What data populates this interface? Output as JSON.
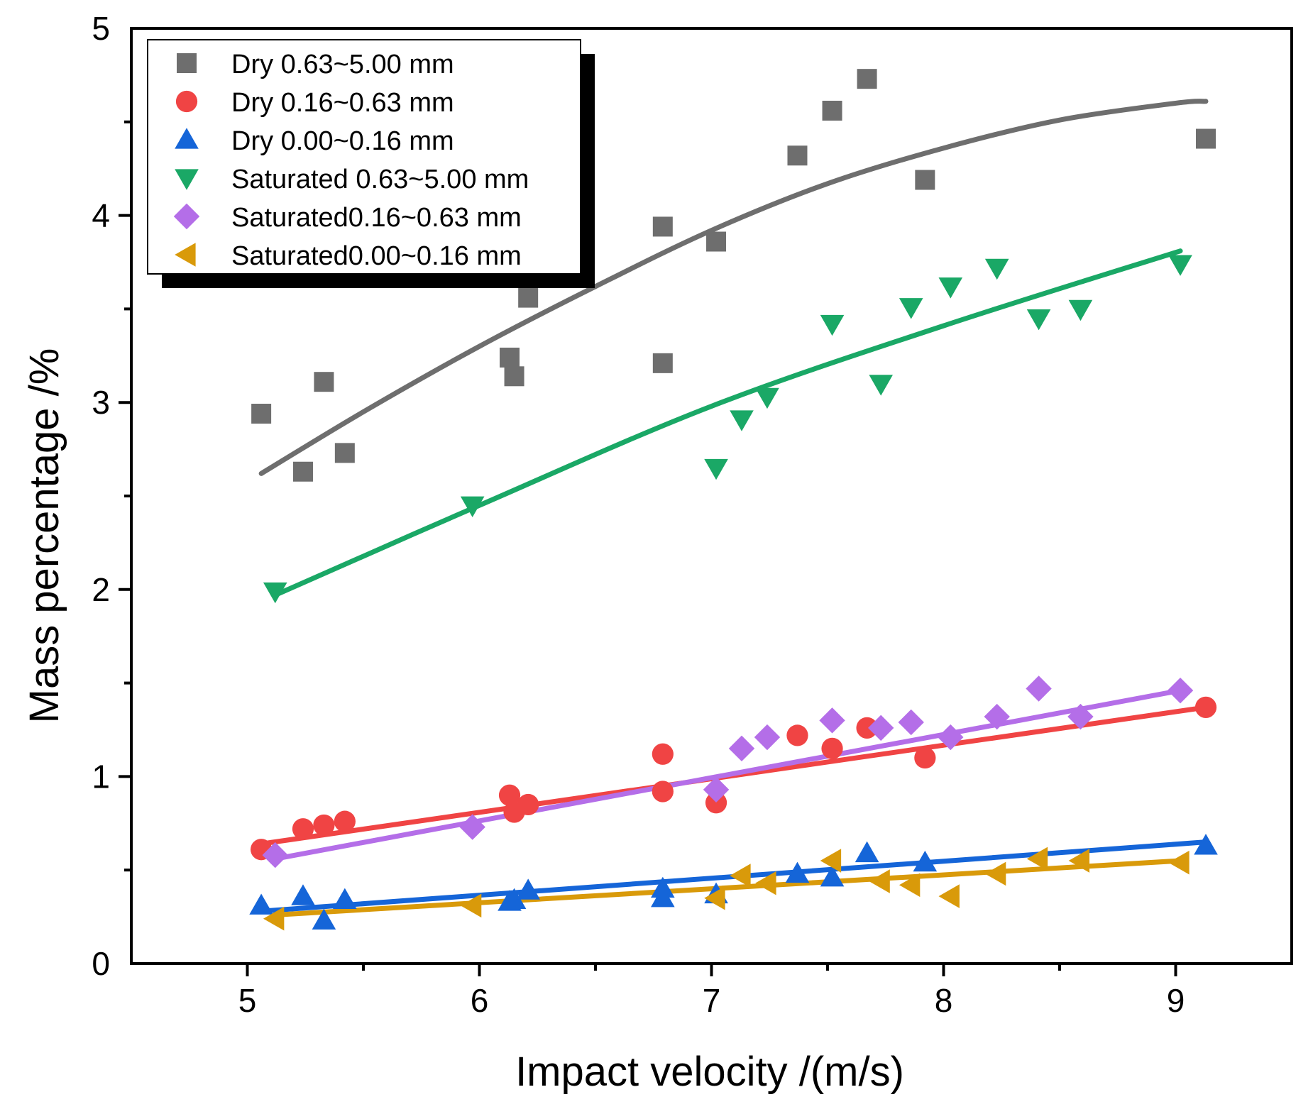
{
  "chart_data": {
    "type": "scatter",
    "title": "",
    "xlabel": "Impact velocity /(m/s)",
    "ylabel": "Mass percentage /%",
    "xlim": [
      4.5,
      9.5
    ],
    "ylim": [
      0,
      5
    ],
    "xticks": [
      5,
      6,
      7,
      8,
      9
    ],
    "yticks": [
      0,
      1,
      2,
      3,
      4,
      5
    ],
    "xtick_labels": [
      "5",
      "6",
      "7",
      "8",
      "9"
    ],
    "ytick_labels": [
      "0",
      "1",
      "2",
      "3",
      "4",
      "5"
    ],
    "grid": false,
    "legend_position": "top-left",
    "series": [
      {
        "name": "Dry 0.63~5.00 mm",
        "marker": "square",
        "color": "#6e6e6e",
        "x": [
          5.06,
          5.24,
          5.33,
          5.42,
          6.13,
          6.15,
          6.21,
          6.79,
          6.79,
          7.02,
          7.37,
          7.52,
          7.67,
          7.92,
          9.13
        ],
        "y": [
          2.94,
          2.63,
          3.11,
          2.73,
          3.24,
          3.14,
          3.56,
          3.94,
          3.21,
          3.86,
          4.32,
          4.56,
          4.73,
          4.19,
          4.41
        ],
        "fit": {
          "x": [
            5.06,
            5.5,
            6.0,
            6.5,
            7.0,
            7.5,
            8.0,
            8.5,
            9.0,
            9.13
          ],
          "y": [
            2.62,
            2.95,
            3.3,
            3.62,
            3.92,
            4.17,
            4.36,
            4.51,
            4.6,
            4.61
          ]
        }
      },
      {
        "name": "Dry 0.16~0.63 mm",
        "marker": "circle",
        "color": "#f04444",
        "x": [
          5.06,
          5.24,
          5.33,
          5.42,
          6.13,
          6.15,
          6.21,
          6.79,
          6.79,
          7.02,
          7.37,
          7.52,
          7.67,
          7.92,
          9.13
        ],
        "y": [
          0.61,
          0.72,
          0.74,
          0.76,
          0.9,
          0.81,
          0.85,
          1.12,
          0.92,
          0.86,
          1.22,
          1.15,
          1.26,
          1.1,
          1.37
        ],
        "fit": {
          "x": [
            5.06,
            9.13
          ],
          "y": [
            0.64,
            1.37
          ]
        }
      },
      {
        "name": "Dry 0.00~0.16 mm",
        "marker": "triangle-up",
        "color": "#1565d8",
        "x": [
          5.06,
          5.24,
          5.33,
          5.42,
          6.13,
          6.15,
          6.21,
          6.79,
          6.79,
          7.02,
          7.37,
          7.52,
          7.67,
          7.92,
          9.13
        ],
        "y": [
          0.31,
          0.36,
          0.23,
          0.34,
          0.33,
          0.34,
          0.39,
          0.4,
          0.35,
          0.37,
          0.48,
          0.46,
          0.59,
          0.54,
          0.63
        ],
        "fit": {
          "x": [
            5.06,
            9.13
          ],
          "y": [
            0.28,
            0.65
          ]
        }
      },
      {
        "name": "Saturated 0.63~5.00 mm",
        "marker": "triangle-down",
        "color": "#1aa866",
        "x": [
          5.12,
          5.97,
          7.02,
          7.13,
          7.24,
          7.52,
          7.73,
          7.86,
          8.03,
          8.23,
          8.41,
          8.59,
          9.02
        ],
        "y": [
          1.99,
          2.45,
          2.65,
          2.91,
          3.03,
          3.42,
          3.1,
          3.51,
          3.62,
          3.72,
          3.45,
          3.5,
          3.74
        ],
        "fit": {
          "x": [
            5.12,
            6.0,
            7.0,
            8.0,
            9.02
          ],
          "y": [
            1.97,
            2.45,
            2.98,
            3.41,
            3.81
          ]
        }
      },
      {
        "name": "Saturated0.16~0.63 mm",
        "marker": "diamond",
        "color": "#b46ee8",
        "x": [
          5.12,
          5.97,
          7.02,
          7.13,
          7.24,
          7.52,
          7.73,
          7.86,
          8.03,
          8.23,
          8.41,
          8.59,
          9.02
        ],
        "y": [
          0.58,
          0.73,
          0.93,
          1.15,
          1.21,
          1.3,
          1.26,
          1.29,
          1.21,
          1.32,
          1.47,
          1.32,
          1.46
        ],
        "fit": {
          "x": [
            5.12,
            9.02
          ],
          "y": [
            0.56,
            1.46
          ]
        }
      },
      {
        "name": "Saturated0.00~0.16 mm",
        "marker": "triangle-left",
        "color": "#d99a0a",
        "x": [
          5.12,
          5.97,
          7.02,
          7.13,
          7.24,
          7.52,
          7.73,
          7.86,
          8.03,
          8.23,
          8.41,
          8.59,
          9.02
        ],
        "y": [
          0.24,
          0.31,
          0.35,
          0.47,
          0.43,
          0.55,
          0.44,
          0.42,
          0.36,
          0.48,
          0.56,
          0.55,
          0.54
        ],
        "fit": {
          "x": [
            5.12,
            9.02
          ],
          "y": [
            0.26,
            0.55
          ]
        }
      }
    ]
  }
}
